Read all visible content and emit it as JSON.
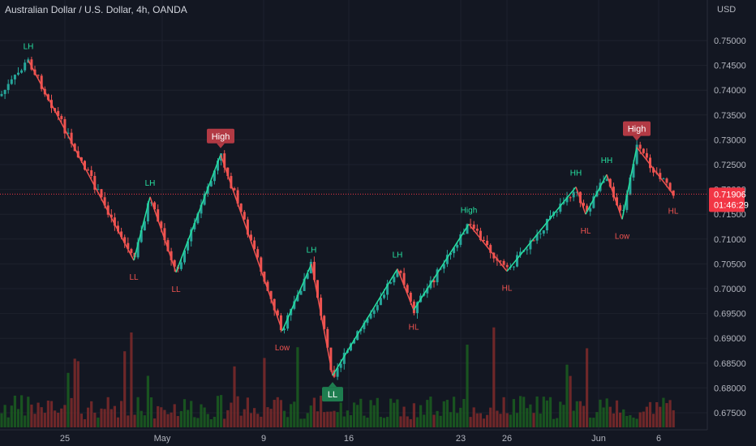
{
  "header": {
    "symbol": "Australian Dollar / U.S. Dollar",
    "interval": "4h",
    "exchange": "OANDA",
    "currency": "USD"
  },
  "colors": {
    "background": "#131722",
    "grid": "#1e222d",
    "up": "#26a69a",
    "down": "#ef5350",
    "zigzag_up": "#26e0a0",
    "zigzag_down": "#ef5350",
    "label_high_bg": "#b23a44",
    "label_low_bg": "#1e7d4f",
    "price_tag": "#f23645"
  },
  "chart_data": {
    "type": "candlestick",
    "y_axis": {
      "ticks": [
        "0.75000",
        "0.74500",
        "0.74000",
        "0.73500",
        "0.73000",
        "0.72500",
        "0.72000",
        "0.71500",
        "0.71000",
        "0.70500",
        "0.70000",
        "0.69500",
        "0.69000",
        "0.68500",
        "0.68000",
        "0.67500"
      ],
      "range": [
        0.6735,
        0.7525
      ]
    },
    "x_axis": {
      "ticks": [
        "25",
        "May",
        "9",
        "16",
        "23",
        "26",
        "Jun",
        "6"
      ]
    },
    "last_price": "0.71906",
    "countdown": "01:46:29",
    "last_price_value": 0.71906,
    "zigzag_points": [
      {
        "date": "Apr 22",
        "price": 0.746,
        "color": "green"
      },
      {
        "date": "Apr 28",
        "price": 0.7057,
        "color": "red"
      },
      {
        "date": "Apr 29",
        "price": 0.7185,
        "color": "green"
      },
      {
        "date": "Apr 30",
        "price": 0.7033,
        "color": "red"
      },
      {
        "date": "May 5",
        "price": 0.727,
        "color": "red"
      },
      {
        "date": "May 10",
        "price": 0.6915,
        "color": "green"
      },
      {
        "date": "May 12",
        "price": 0.705,
        "color": "red"
      },
      {
        "date": "May 13",
        "price": 0.6825,
        "color": "green"
      },
      {
        "date": "May 19",
        "price": 0.704,
        "color": "red"
      },
      {
        "date": "May 20",
        "price": 0.6957,
        "color": "green"
      },
      {
        "date": "May 23",
        "price": 0.713,
        "color": "red"
      },
      {
        "date": "May 26",
        "price": 0.7035,
        "color": "green"
      },
      {
        "date": "May 31",
        "price": 0.7205,
        "color": "red"
      },
      {
        "date": "Jun 1",
        "price": 0.715,
        "color": "green"
      },
      {
        "date": "Jun 2",
        "price": 0.723,
        "color": "red"
      },
      {
        "date": "Jun 3",
        "price": 0.714,
        "color": "green"
      },
      {
        "date": "Jun 4",
        "price": 0.7285,
        "color": "red"
      },
      {
        "date": "Jun 6",
        "price": 0.719,
        "color": "red"
      }
    ],
    "labels": [
      {
        "text": "LH",
        "kind": "plain",
        "color": "green",
        "date": "Apr 22",
        "price": 0.746,
        "side": "above"
      },
      {
        "text": "LL",
        "kind": "plain",
        "color": "red",
        "date": "Apr 28",
        "price": 0.7057,
        "side": "below"
      },
      {
        "text": "LH",
        "kind": "plain",
        "color": "green",
        "date": "Apr 29",
        "price": 0.7185,
        "side": "above"
      },
      {
        "text": "LL",
        "kind": "plain",
        "color": "red",
        "date": "Apr 30",
        "price": 0.7033,
        "side": "below"
      },
      {
        "text": "High",
        "kind": "box-high",
        "color": "red",
        "date": "May 5",
        "price": 0.727,
        "side": "above"
      },
      {
        "text": "Low",
        "kind": "plain",
        "color": "red",
        "date": "May 10",
        "price": 0.6915,
        "side": "below"
      },
      {
        "text": "LH",
        "kind": "plain",
        "color": "green",
        "date": "May 12",
        "price": 0.705,
        "side": "above"
      },
      {
        "text": "LL",
        "kind": "box-low",
        "color": "green",
        "date": "May 13",
        "price": 0.6825,
        "side": "below"
      },
      {
        "text": "LH",
        "kind": "plain",
        "color": "green",
        "date": "May 19",
        "price": 0.704,
        "side": "above"
      },
      {
        "text": "HL",
        "kind": "plain",
        "color": "red",
        "date": "May 20",
        "price": 0.6957,
        "side": "below"
      },
      {
        "text": "High",
        "kind": "plain",
        "color": "green",
        "date": "May 23",
        "price": 0.713,
        "side": "above"
      },
      {
        "text": "HL",
        "kind": "plain",
        "color": "red",
        "date": "May 26",
        "price": 0.7035,
        "side": "below"
      },
      {
        "text": "HH",
        "kind": "plain",
        "color": "green",
        "date": "May 31",
        "price": 0.7205,
        "side": "above"
      },
      {
        "text": "HL",
        "kind": "plain",
        "color": "red",
        "date": "Jun 1",
        "price": 0.715,
        "side": "below"
      },
      {
        "text": "HH",
        "kind": "plain",
        "color": "green",
        "date": "Jun 2",
        "price": 0.723,
        "side": "above"
      },
      {
        "text": "Low",
        "kind": "plain",
        "color": "red",
        "date": "Jun 3",
        "price": 0.714,
        "side": "below"
      },
      {
        "text": "High",
        "kind": "box-high",
        "color": "red",
        "date": "Jun 4",
        "price": 0.7285,
        "side": "above"
      },
      {
        "text": "HL",
        "kind": "plain",
        "color": "red",
        "date": "Jun 6",
        "price": 0.719,
        "side": "below"
      }
    ]
  }
}
